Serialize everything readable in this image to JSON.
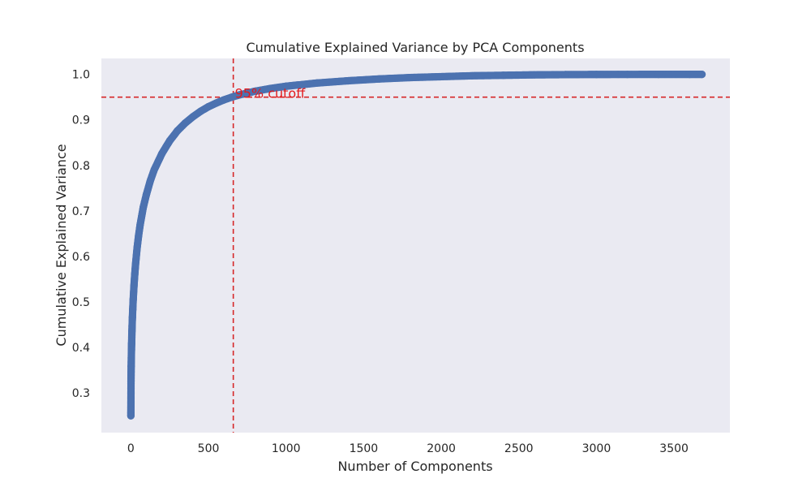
{
  "chart_data": {
    "type": "line",
    "title": "Cumulative Explained Variance by PCA Components",
    "xlabel": "Number of Components",
    "ylabel": "Cumulative Explained Variance",
    "xlim": [
      -190,
      3860
    ],
    "ylim": [
      0.213,
      1.035
    ],
    "xticks": [
      0,
      500,
      1000,
      1500,
      2000,
      2500,
      3000,
      3500
    ],
    "yticks": [
      0.3,
      0.4,
      0.5,
      0.6,
      0.7,
      0.8,
      0.9,
      1.0
    ],
    "grid": false,
    "marker": "circle",
    "series": [
      {
        "color": "#4c72b0",
        "x": [
          0,
          1,
          2,
          3,
          4,
          5,
          6,
          7,
          8,
          10,
          12,
          15,
          20,
          25,
          30,
          40,
          50,
          60,
          80,
          100,
          125,
          150,
          200,
          250,
          300,
          350,
          400,
          450,
          500,
          550,
          600,
          650,
          700,
          800,
          900,
          1000,
          1200,
          1400,
          1600,
          1800,
          2000,
          2200,
          2400,
          2600,
          2800,
          3000,
          3200,
          3400,
          3600,
          3680
        ],
        "y": [
          0.25,
          0.327,
          0.358,
          0.378,
          0.395,
          0.41,
          0.423,
          0.436,
          0.447,
          0.466,
          0.483,
          0.505,
          0.535,
          0.56,
          0.582,
          0.618,
          0.646,
          0.67,
          0.708,
          0.736,
          0.766,
          0.79,
          0.826,
          0.854,
          0.876,
          0.893,
          0.907,
          0.919,
          0.929,
          0.937,
          0.944,
          0.95,
          0.955,
          0.963,
          0.969,
          0.974,
          0.981,
          0.986,
          0.99,
          0.993,
          0.995,
          0.997,
          0.998,
          0.999,
          0.9995,
          0.9998,
          0.9999,
          1.0,
          1.0,
          1.0
        ]
      }
    ],
    "reference_lines": [
      {
        "orientation": "horizontal",
        "value": 0.95,
        "color": "#d62728",
        "style": "dashed"
      },
      {
        "orientation": "vertical",
        "value": 660,
        "color": "#d62728",
        "style": "dashed"
      }
    ],
    "annotations": [
      {
        "text": "95% cutoff",
        "x": 670,
        "y": 0.95,
        "color": "#e41a1c"
      }
    ],
    "colors": {
      "plot_background": "#eaeaf2",
      "series": "#4c72b0",
      "reference": "#d62728",
      "annotation": "#e41a1c"
    }
  }
}
